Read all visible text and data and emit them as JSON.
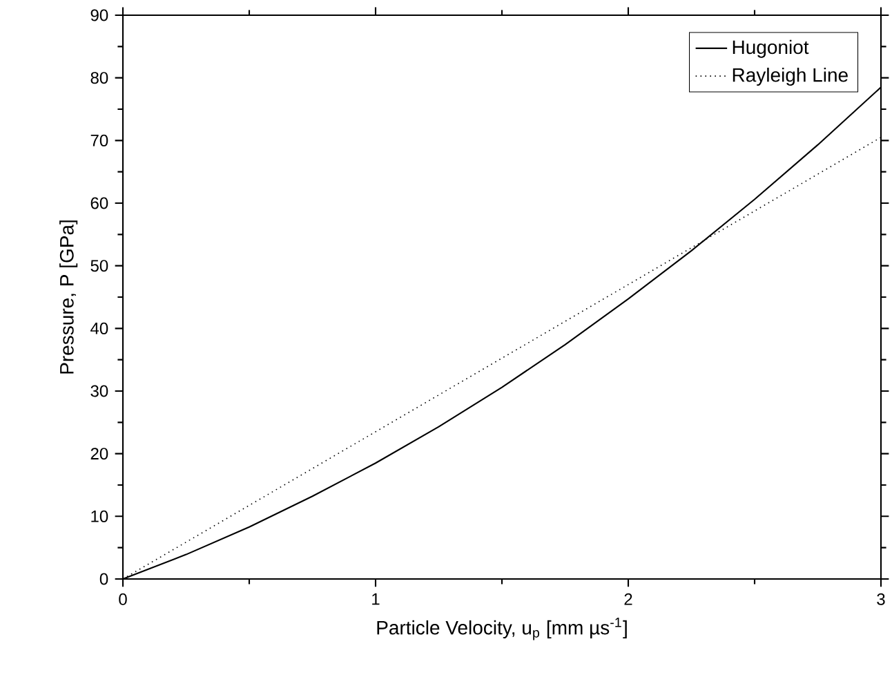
{
  "chart_data": {
    "type": "line",
    "xlabel": "Particle Velocity, u$_{p}$ [mm µs$^{-1}$]",
    "ylabel": "Pressure, P [GPa]",
    "xlim": [
      0,
      3
    ],
    "xticks": [
      0,
      1,
      2,
      3
    ],
    "ylim": [
      0,
      90
    ],
    "yticks": [
      0,
      10,
      20,
      30,
      40,
      50,
      60,
      70,
      80,
      90
    ],
    "legend": "top right",
    "grid": false,
    "marker": "none",
    "series": [
      {
        "name": "Hugoniot",
        "color": "#000000",
        "line_style": "solid",
        "x": [
          0,
          0.25,
          0.5,
          0.75,
          1,
          1.25,
          1.5,
          1.75,
          2,
          2.25,
          2.5,
          2.75,
          3
        ],
        "values": [
          0,
          3.9,
          8.3,
          13.2,
          18.5,
          24.3,
          30.6,
          37.4,
          44.7,
          52.4,
          60.6,
          69.3,
          78.5
        ]
      },
      {
        "name": "Rayleigh Line",
        "color": "#000000",
        "line_style": "dotted",
        "x": [
          0,
          1,
          2,
          3
        ],
        "values": [
          0,
          23.5,
          47,
          70.5
        ]
      }
    ]
  }
}
